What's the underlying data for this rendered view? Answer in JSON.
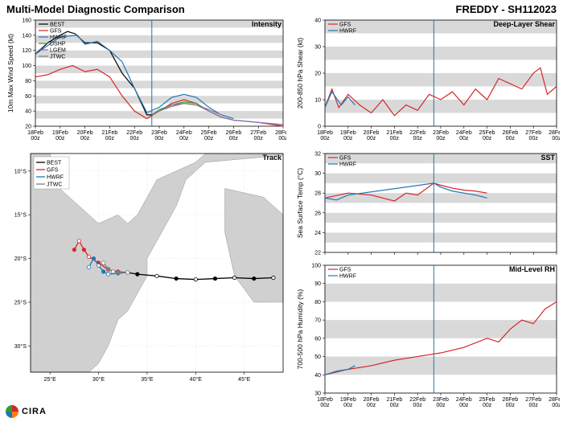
{
  "header": {
    "title_left": "Multi-Model Diagnostic Comparison",
    "title_right": "FREDDY - SH112023",
    "title_fontsize": 13
  },
  "logo": {
    "text": "CIRA",
    "colors": [
      "#d62728",
      "#ff7f0e",
      "#1f77b4",
      "#2ca02c"
    ]
  },
  "colors": {
    "BEST": "#000000",
    "GFS": "#d62728",
    "HWRF": "#1f77b4",
    "DSHP": "#2ca02c",
    "LGEM": "#9467bd",
    "JTWC": "#7f7f7f",
    "shade": "#d9d9d9",
    "grid": "#d9d9d9",
    "frame": "#000000",
    "now_line": "#1f77b4",
    "map_land": "#d0d0d0",
    "map_sea": "#ffffff",
    "map_border": "#7f7f7f"
  },
  "x_time": {
    "ticks": [
      "18Feb\n00z",
      "19Feb\n00z",
      "20Feb\n00z",
      "21Feb\n00z",
      "22Feb\n00z",
      "23Feb\n00z",
      "24Feb\n00z",
      "25Feb\n00z",
      "26Feb\n00z",
      "27Feb\n00z",
      "28Feb\n00z"
    ],
    "xlim": [
      0,
      10
    ],
    "now_x": 4.7
  },
  "intensity": {
    "title": "Intensity",
    "ylabel": "10m Max Wind Speed (kt)",
    "ylim": [
      20,
      160
    ],
    "ytick_step": 20,
    "shade_step": 10,
    "line_width": 1.2,
    "legend": [
      "BEST",
      "GFS",
      "HWRF",
      "DSHP",
      "LGEM",
      "JTWC"
    ],
    "series": {
      "BEST": [
        [
          0,
          115
        ],
        [
          0.5,
          130
        ],
        [
          1,
          140
        ],
        [
          1.3,
          145
        ],
        [
          1.6,
          142
        ],
        [
          2,
          130
        ],
        [
          2.5,
          130
        ],
        [
          3,
          120
        ],
        [
          3.5,
          90
        ],
        [
          4,
          70
        ],
        [
          4.5,
          35
        ],
        [
          4.7,
          35
        ]
      ],
      "GFS": [
        [
          0,
          85
        ],
        [
          0.5,
          88
        ],
        [
          1,
          95
        ],
        [
          1.5,
          100
        ],
        [
          2,
          92
        ],
        [
          2.5,
          95
        ],
        [
          3,
          85
        ],
        [
          3.5,
          60
        ],
        [
          4,
          40
        ],
        [
          4.5,
          30
        ],
        [
          5,
          40
        ],
        [
          5.5,
          50
        ],
        [
          6,
          55
        ],
        [
          6.5,
          50
        ],
        [
          7,
          40
        ],
        [
          7.5,
          32
        ],
        [
          8,
          28
        ],
        [
          9,
          25
        ],
        [
          10,
          20
        ]
      ],
      "HWRF": [
        [
          0,
          115
        ],
        [
          1,
          138
        ],
        [
          1.7,
          140
        ],
        [
          2,
          128
        ],
        [
          2.5,
          132
        ],
        [
          3,
          120
        ],
        [
          3.5,
          105
        ],
        [
          4,
          70
        ],
        [
          4.5,
          38
        ],
        [
          5,
          45
        ],
        [
          5.5,
          58
        ],
        [
          6,
          62
        ],
        [
          6.5,
          58
        ],
        [
          7,
          45
        ],
        [
          7.5,
          35
        ],
        [
          8,
          30
        ]
      ],
      "DSHP": [
        [
          4.7,
          35
        ],
        [
          5,
          42
        ],
        [
          5.5,
          48
        ],
        [
          6,
          52
        ],
        [
          6.5,
          50
        ],
        [
          7,
          40
        ],
        [
          7.5,
          32
        ],
        [
          8,
          28
        ],
        [
          9,
          25
        ],
        [
          10,
          22
        ]
      ],
      "LGEM": [
        [
          4.7,
          35
        ],
        [
          5,
          40
        ],
        [
          5.5,
          46
        ],
        [
          6,
          50
        ],
        [
          6.5,
          48
        ],
        [
          7,
          40
        ],
        [
          7.5,
          32
        ],
        [
          8,
          28
        ],
        [
          9,
          25
        ],
        [
          10,
          22
        ]
      ],
      "JTWC": [
        [
          4.7,
          35
        ],
        [
          5,
          40
        ],
        [
          5.5,
          48
        ],
        [
          6,
          50
        ],
        [
          6.5,
          48
        ],
        [
          7,
          42
        ],
        [
          7.5,
          35
        ]
      ]
    }
  },
  "shear": {
    "title": "Deep-Layer Shear",
    "ylabel": "200-850 hPa Shear (kt)",
    "ylim": [
      0,
      40
    ],
    "ytick_step": 10,
    "shade_step": 5,
    "legend": [
      "GFS",
      "HWRF"
    ],
    "series": {
      "GFS": [
        [
          0,
          7
        ],
        [
          0.3,
          14
        ],
        [
          0.6,
          7
        ],
        [
          1,
          12
        ],
        [
          1.5,
          8
        ],
        [
          2,
          5
        ],
        [
          2.5,
          10
        ],
        [
          3,
          4
        ],
        [
          3.5,
          8
        ],
        [
          4,
          6
        ],
        [
          4.5,
          12
        ],
        [
          5,
          10
        ],
        [
          5.5,
          13
        ],
        [
          6,
          8
        ],
        [
          6.5,
          14
        ],
        [
          7,
          10
        ],
        [
          7.5,
          18
        ],
        [
          8,
          16
        ],
        [
          8.5,
          14
        ],
        [
          9,
          20
        ],
        [
          9.3,
          22
        ],
        [
          9.6,
          12
        ],
        [
          10,
          15
        ]
      ],
      "HWRF": [
        [
          0,
          7
        ],
        [
          0.3,
          13
        ],
        [
          0.7,
          8
        ],
        [
          1,
          11
        ],
        [
          1.3,
          8
        ]
      ]
    }
  },
  "sst": {
    "title": "SST",
    "ylabel": "Sea Surface Temp (°C)",
    "ylim": [
      22,
      32
    ],
    "ytick_step": 2,
    "shade_step": 1,
    "legend": [
      "GFS",
      "HWRF"
    ],
    "series": {
      "GFS": [
        [
          0,
          27.5
        ],
        [
          1,
          28
        ],
        [
          2,
          27.8
        ],
        [
          3,
          27.2
        ],
        [
          3.5,
          28
        ],
        [
          4,
          27.8
        ],
        [
          4.7,
          29
        ],
        [
          5,
          28.8
        ],
        [
          5.5,
          28.5
        ],
        [
          6,
          28.3
        ],
        [
          6.5,
          28.2
        ],
        [
          7,
          28
        ]
      ],
      "HWRF": [
        [
          0,
          27.5
        ],
        [
          0.5,
          27.3
        ],
        [
          1,
          27.8
        ],
        [
          4.7,
          29
        ],
        [
          5,
          28.6
        ],
        [
          5.5,
          28.2
        ],
        [
          6,
          28
        ],
        [
          6.5,
          27.8
        ],
        [
          7,
          27.5
        ]
      ]
    }
  },
  "rh": {
    "title": "Mid-Level RH",
    "ylabel": "700-500 hPa Humidity (%)",
    "ylim": [
      30,
      100
    ],
    "ytick_step": 10,
    "shade_step": 10,
    "legend": [
      "GFS",
      "HWRF"
    ],
    "series": {
      "GFS": [
        [
          0,
          40
        ],
        [
          1,
          43
        ],
        [
          2,
          45
        ],
        [
          3,
          48
        ],
        [
          4,
          50
        ],
        [
          5,
          52
        ],
        [
          6,
          55
        ],
        [
          7,
          60
        ],
        [
          7.5,
          58
        ],
        [
          8,
          65
        ],
        [
          8.5,
          70
        ],
        [
          9,
          68
        ],
        [
          9.5,
          76
        ],
        [
          10,
          80
        ]
      ],
      "HWRF": [
        [
          0,
          40
        ],
        [
          0.5,
          42
        ],
        [
          1,
          43
        ],
        [
          1.3,
          45
        ]
      ]
    }
  },
  "track": {
    "title": "Track",
    "xlim": [
      23,
      49
    ],
    "ylim": [
      33,
      8
    ],
    "xticks": [
      25,
      30,
      35,
      40,
      45
    ],
    "yticks": [
      10,
      15,
      20,
      25,
      30
    ],
    "xtick_suffix": "°E",
    "ytick_suffix": "°S",
    "legend": [
      "BEST",
      "GFS",
      "HWRF",
      "JTWC"
    ],
    "marker_size": 2.2,
    "land_polys": [
      [
        [
          23,
          8
        ],
        [
          25,
          8
        ],
        [
          26,
          12
        ],
        [
          28,
          14
        ],
        [
          29,
          15
        ],
        [
          30,
          16
        ],
        [
          32,
          15
        ],
        [
          33,
          16
        ],
        [
          34,
          15
        ],
        [
          35,
          13
        ],
        [
          36,
          11
        ],
        [
          38,
          10
        ],
        [
          40,
          9
        ],
        [
          41,
          8
        ],
        [
          49,
          8
        ],
        [
          49,
          8.2
        ],
        [
          41,
          9
        ],
        [
          39,
          11
        ],
        [
          38,
          14
        ],
        [
          36,
          18
        ],
        [
          35,
          20
        ],
        [
          35,
          22
        ],
        [
          34,
          24
        ],
        [
          33,
          26
        ],
        [
          32,
          27
        ],
        [
          31,
          30
        ],
        [
          30,
          32
        ],
        [
          29,
          33
        ],
        [
          23,
          33
        ]
      ],
      [
        [
          43,
          12
        ],
        [
          47,
          13
        ],
        [
          49,
          15
        ],
        [
          49,
          25
        ],
        [
          46,
          25
        ],
        [
          44,
          22
        ],
        [
          43,
          17
        ],
        [
          43,
          13
        ]
      ]
    ],
    "series": {
      "BEST": [
        [
          48,
          22.2
        ],
        [
          46,
          22.3
        ],
        [
          44,
          22.2
        ],
        [
          42,
          22.3
        ],
        [
          40,
          22.4
        ],
        [
          38,
          22.3
        ],
        [
          36,
          22
        ],
        [
          34,
          21.8
        ],
        [
          33,
          21.6
        ]
      ],
      "GFS": [
        [
          33,
          21.6
        ],
        [
          32,
          21.5
        ],
        [
          31,
          21.3
        ],
        [
          30,
          20.5
        ],
        [
          29,
          19.8
        ],
        [
          28.5,
          19
        ],
        [
          28,
          18
        ],
        [
          27.5,
          19
        ]
      ],
      "HWRF": [
        [
          33,
          21.6
        ],
        [
          32,
          21.7
        ],
        [
          31,
          21.8
        ],
        [
          30.5,
          21.5
        ],
        [
          30,
          20.8
        ],
        [
          29.5,
          20
        ],
        [
          29,
          21
        ]
      ],
      "JTWC": [
        [
          33,
          21.6
        ],
        [
          32,
          21.6
        ],
        [
          31.5,
          21.5
        ],
        [
          31,
          21.2
        ],
        [
          30.5,
          20.5
        ]
      ]
    }
  }
}
